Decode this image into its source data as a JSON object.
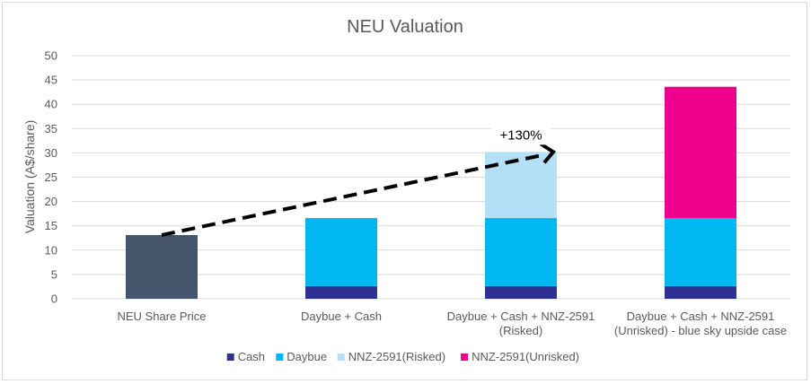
{
  "chart_data": {
    "type": "bar",
    "stacked": true,
    "title": "NEU Valuation",
    "xlabel": "",
    "ylabel": "Valuation (A$/share)",
    "ylim": [
      0,
      50
    ],
    "yticks": [
      0,
      5,
      10,
      15,
      20,
      25,
      30,
      35,
      40,
      45,
      50
    ],
    "grid": true,
    "legend_position": "bottom",
    "categories": [
      [
        "NEU Share Price"
      ],
      [
        "Daybue + Cash"
      ],
      [
        "Daybue + Cash + NNZ-2591",
        "(Risked)"
      ],
      [
        "Daybue + Cash + NNZ-2591",
        "(Unrisked) - blue sky upside case"
      ]
    ],
    "series": [
      {
        "name": "NEU Share Price",
        "color": "#44546a",
        "values": [
          13.1,
          0,
          0,
          0
        ],
        "in_legend": false
      },
      {
        "name": "Cash",
        "color": "#2e3192",
        "values": [
          0,
          2.6,
          2.6,
          2.6
        ],
        "in_legend": true
      },
      {
        "name": "Daybue",
        "color": "#00b9f2",
        "values": [
          0,
          14.0,
          14.0,
          14.0
        ],
        "in_legend": true
      },
      {
        "name": "NNZ-2591(Risked)",
        "color": "#b4e0f7",
        "values": [
          0,
          0,
          13.6,
          0
        ],
        "in_legend": true
      },
      {
        "name": "NNZ-2591(Unrisked)",
        "color": "#ec008c",
        "values": [
          0,
          0,
          0,
          27.0
        ],
        "in_legend": true
      }
    ],
    "annotations": [
      {
        "text": "+130%",
        "type": "dashed-arrow",
        "from": {
          "category": 0,
          "value": 13.1
        },
        "to": {
          "category": 2,
          "value": 30.2
        }
      }
    ]
  }
}
